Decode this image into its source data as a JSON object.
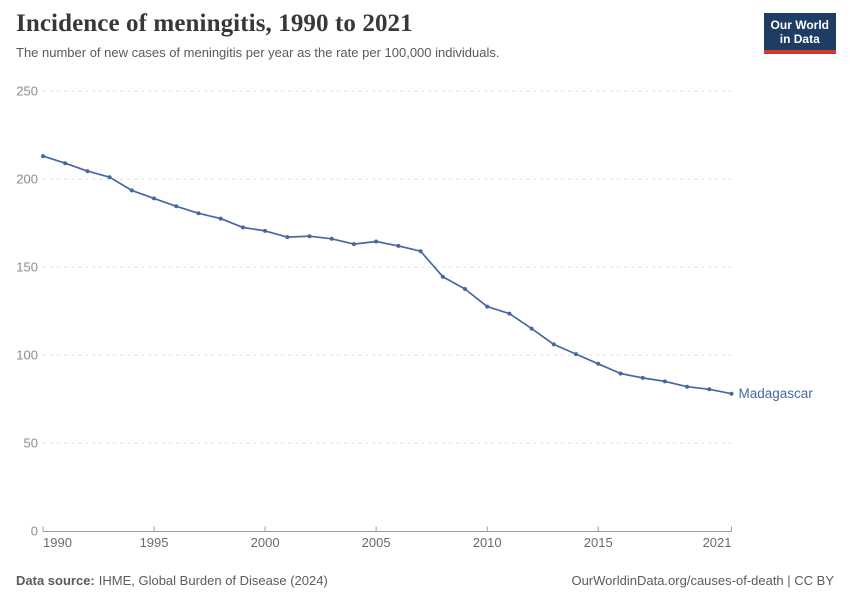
{
  "header": {
    "title": "Incidence of meningitis, 1990 to 2021",
    "subtitle": "The number of new cases of meningitis per year as the rate per 100,000 individuals.",
    "logo": {
      "line1": "Our World",
      "line2": "in Data"
    }
  },
  "chart_data": {
    "type": "line",
    "title": "Incidence of meningitis, 1990 to 2021",
    "xlabel": "",
    "ylabel": "",
    "x": [
      1990,
      1991,
      1992,
      1993,
      1994,
      1995,
      1996,
      1997,
      1998,
      1999,
      2000,
      2001,
      2002,
      2003,
      2004,
      2005,
      2006,
      2007,
      2008,
      2009,
      2010,
      2011,
      2012,
      2013,
      2014,
      2015,
      2016,
      2017,
      2018,
      2019,
      2020,
      2021
    ],
    "series": [
      {
        "name": "Madagascar",
        "color": "#4667a3",
        "values": [
          213,
          209,
          204.5,
          201,
          193.5,
          189,
          184.5,
          180.5,
          177.5,
          172.5,
          170.5,
          167,
          167.5,
          166,
          163,
          164.5,
          162,
          159,
          144.5,
          137.5,
          127.5,
          123.5,
          115,
          106,
          100.5,
          95,
          89.5,
          87,
          85,
          82,
          80.5,
          78
        ]
      }
    ],
    "end_label": "Madagascar",
    "x_ticks": [
      "1990",
      "1995",
      "2000",
      "2005",
      "2010",
      "2015",
      "2021"
    ],
    "y_ticks": [
      0,
      50,
      100,
      150,
      200,
      250
    ],
    "xlim": [
      1990,
      2021
    ],
    "ylim": [
      0,
      250
    ],
    "grid": "horizontal-dashed",
    "legend_position": "end-of-line"
  },
  "footer": {
    "source_label": "Data source:",
    "source_text": "IHME, Global Burden of Disease (2024)",
    "credit_text": "OurWorldinData.org/causes-of-death | CC BY"
  },
  "colors": {
    "line": "#4667a3",
    "grid": "#e0e0e0",
    "axis": "#9e9e9e",
    "x_tick_label": "#6b6b6b",
    "y_tick_label": "#8c8c8c",
    "title": "#383838",
    "subtitle": "#595959",
    "footer": "#5b5b5b",
    "logo_bg": "#1d3d63",
    "logo_accent": "#cf3b2c",
    "background": "#ffffff"
  }
}
